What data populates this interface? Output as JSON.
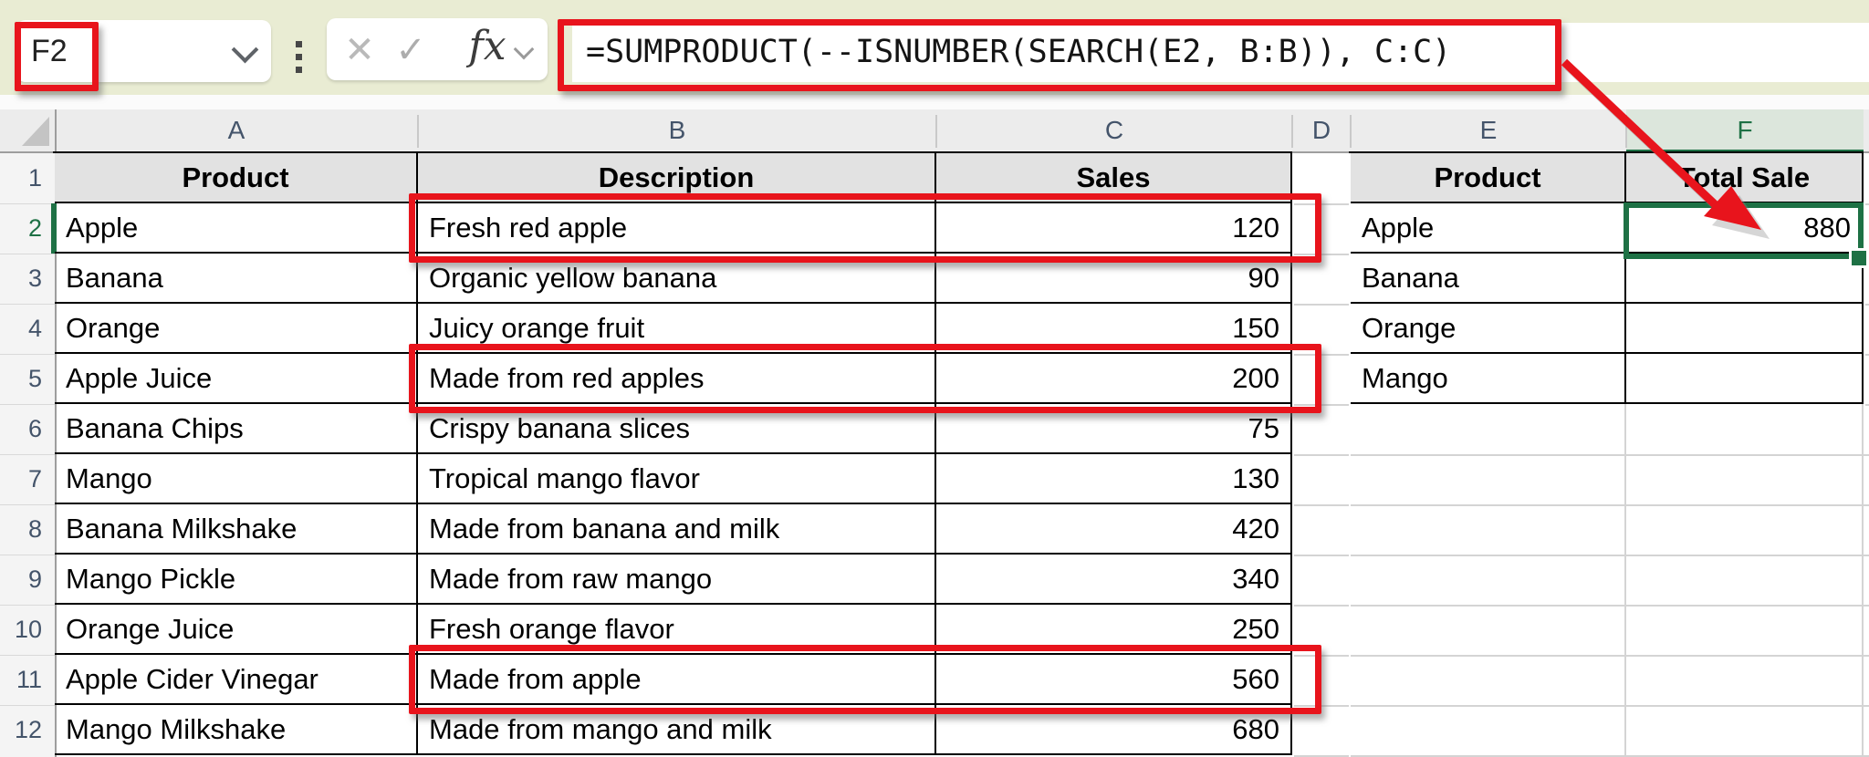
{
  "name_box": {
    "value": "F2"
  },
  "formula_bar": {
    "formula": "=SUMPRODUCT(--ISNUMBER(SEARCH(E2, B:B)), C:C)"
  },
  "toolbar_icons": {
    "cancel": "✕",
    "enter": "✓",
    "fx": "fx"
  },
  "grid": {
    "column_letters": [
      "A",
      "B",
      "C",
      "D",
      "E",
      "F"
    ],
    "row_numbers": [
      "1",
      "2",
      "3",
      "4",
      "5",
      "6",
      "7",
      "8",
      "9",
      "10",
      "11",
      "12"
    ],
    "selected_cell": "F2",
    "selected_column": "F",
    "selected_row": "2"
  },
  "main_table": {
    "headers": [
      "Product",
      "Description",
      "Sales"
    ],
    "rows": [
      [
        "Apple",
        "Fresh red apple",
        "120"
      ],
      [
        "Banana",
        "Organic yellow banana",
        "90"
      ],
      [
        "Orange",
        "Juicy orange fruit",
        "150"
      ],
      [
        "Apple Juice",
        "Made from red apples",
        "200"
      ],
      [
        "Banana Chips",
        "Crispy banana slices",
        "75"
      ],
      [
        "Mango",
        "Tropical mango flavor",
        "130"
      ],
      [
        "Banana Milkshake",
        "Made from banana and milk",
        "420"
      ],
      [
        "Mango Pickle",
        "Made from raw mango",
        "340"
      ],
      [
        "Orange Juice",
        "Fresh orange flavor",
        "250"
      ],
      [
        "Apple Cider Vinegar",
        "Made from apple",
        "560"
      ],
      [
        "Mango Milkshake",
        "Made from mango and milk",
        "680"
      ]
    ]
  },
  "lookup_table": {
    "headers": [
      "Product",
      "Total Sale"
    ],
    "rows": [
      [
        "Apple",
        "880"
      ],
      [
        "Banana",
        ""
      ],
      [
        "Orange",
        ""
      ],
      [
        "Mango",
        ""
      ]
    ]
  },
  "annotations": {
    "highlight_color": "#e8141c",
    "highlighted_regions": [
      "name-box F2",
      "formula bar",
      "B2:C2",
      "B5:C5",
      "B11:C11"
    ],
    "arrow": "formula bar to cell F2 result 880"
  },
  "colors": {
    "selection_green": "#1e7145",
    "chrome_background": "#e9ecd3",
    "highlight_red": "#e8141c"
  }
}
